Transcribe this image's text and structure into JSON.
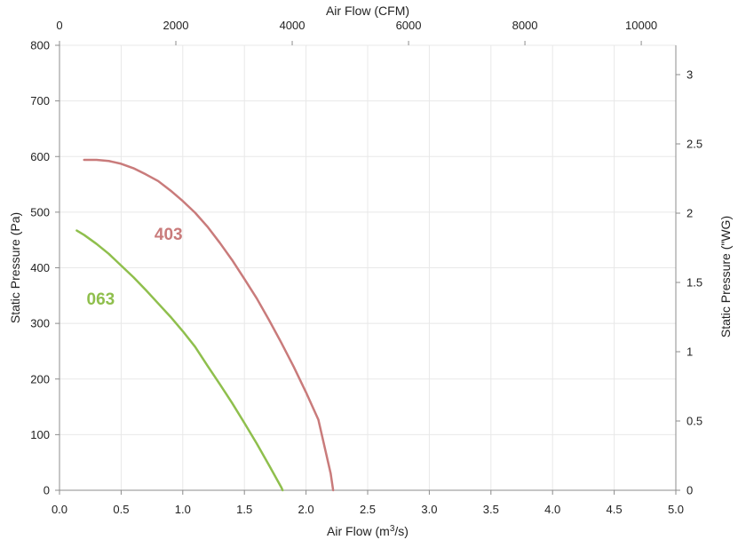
{
  "chart_data": {
    "type": "line",
    "title": "",
    "x_bottom": {
      "label_prefix": "Air Flow (m",
      "label_sup": "3",
      "label_suffix": "/s)",
      "range": [
        0,
        5
      ],
      "ticks": [
        "0.0",
        "0.5",
        "1.0",
        "1.5",
        "2.0",
        "2.5",
        "3.0",
        "3.5",
        "4.0",
        "4.5",
        "5.0"
      ]
    },
    "x_top": {
      "label": "Air Flow (CFM)",
      "range": [
        0,
        10594
      ],
      "ticks": [
        "0",
        "2000",
        "4000",
        "6000",
        "8000",
        "10000"
      ],
      "tick_values": [
        0,
        2000,
        4000,
        6000,
        8000,
        10000
      ]
    },
    "y_left": {
      "label": "Static Pressure (Pa)",
      "range": [
        0,
        800
      ],
      "ticks": [
        "0",
        "100",
        "200",
        "300",
        "400",
        "500",
        "600",
        "700",
        "800"
      ]
    },
    "y_right": {
      "label": "Static Pressure (\"WG)",
      "range": [
        0,
        3.2116
      ],
      "ticks": [
        "0",
        "0.5",
        "1",
        "1.5",
        "2",
        "2.5",
        "3"
      ],
      "tick_values": [
        0,
        0.5,
        1,
        1.5,
        2,
        2.5,
        3
      ]
    },
    "grid": true,
    "legend": "none",
    "series": [
      {
        "name": "403",
        "color": "#c97b7b",
        "x": [
          0.2,
          0.3,
          0.4,
          0.5,
          0.6,
          0.7,
          0.8,
          0.9,
          1.0,
          1.1,
          1.2,
          1.3,
          1.4,
          1.5,
          1.6,
          1.7,
          1.8,
          1.9,
          2.0,
          2.1,
          2.2,
          2.22
        ],
        "y": [
          594,
          594,
          592,
          587,
          579,
          568,
          556,
          539,
          520,
          499,
          474,
          445,
          414,
          380,
          345,
          306,
          265,
          222,
          176,
          127,
          30,
          0
        ]
      },
      {
        "name": "063",
        "color": "#8fbf4d",
        "x": [
          0.14,
          0.2,
          0.3,
          0.4,
          0.5,
          0.6,
          0.7,
          0.8,
          0.9,
          1.0,
          1.1,
          1.2,
          1.3,
          1.4,
          1.5,
          1.6,
          1.7,
          1.8,
          1.81
        ],
        "y": [
          467,
          459,
          443,
          425,
          404,
          383,
          360,
          336,
          312,
          286,
          258,
          224,
          191,
          157,
          121,
          84,
          45,
          5,
          0
        ]
      }
    ]
  }
}
